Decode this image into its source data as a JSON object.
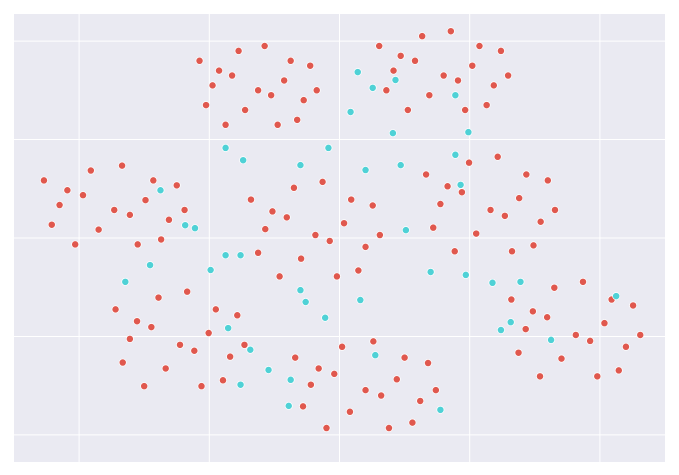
{
  "chart_data": {
    "type": "scatter",
    "grid": true,
    "background": "#eaeaf2",
    "xlim": [
      -50,
      50
    ],
    "ylim": [
      -45.5,
      45.5
    ],
    "xticks": [
      -40,
      -20,
      0,
      20,
      40
    ],
    "yticks": [
      -40,
      -20,
      0,
      20,
      40
    ],
    "series": [
      {
        "color": "#e0584e",
        "x": [
          -12.5,
          -18.5,
          -7.5,
          -20.5,
          -5.5,
          -15.5,
          -9.5,
          -21.5,
          -4.5,
          -17.5,
          -8.5,
          -14.5,
          -3.5,
          -19.5,
          -11.5,
          -6.5,
          -16.5,
          -10.5,
          16,
          9.4,
          21.5,
          7.2,
          23.7,
          12.7,
          19.3,
          6.1,
          24.8,
          10.5,
          20.4,
          13.8,
          25.9,
          8.3,
          17.1,
          22.6,
          11.6,
          18.2,
          -34.6,
          -41.8,
          -28.6,
          -44.2,
          -26.2,
          -38.2,
          -31,
          -45.4,
          -25,
          -40.6,
          -29.8,
          -37,
          -23.8,
          -43,
          -33.4,
          -27.4,
          -39.4,
          -32.2,
          -3.7,
          -10.3,
          1.8,
          -12.5,
          4,
          -7,
          -0.4,
          -13.6,
          5.1,
          -9.2,
          0.7,
          -5.9,
          6.2,
          -11.4,
          -2.6,
          2.9,
          -8.1,
          -1.5,
          23.2,
          16.6,
          28.7,
          14.4,
          30.9,
          19.9,
          26.5,
          13.3,
          32,
          17.7,
          27.6,
          21,
          33.1,
          15.5,
          24.3,
          29.8,
          18.8,
          25.4,
          -24.5,
          -31.1,
          -19,
          -33.3,
          -16.8,
          -27.8,
          -21.2,
          -34.4,
          -15.7,
          -30,
          -20.1,
          -26.7,
          -14.6,
          -32.2,
          -23.4,
          -17.9,
          -28.9,
          -22.3,
          4,
          -3.2,
          10,
          -5.6,
          12.4,
          0.4,
          7.6,
          -6.8,
          13.6,
          -2,
          8.8,
          1.6,
          14.8,
          -4.4,
          5.2,
          11.2,
          -0.8,
          6.4,
          36.3,
          29.7,
          41.8,
          27.5,
          44,
          33,
          39.6,
          26.4,
          45.1,
          30.8,
          40.7,
          34.1,
          46.2,
          28.6,
          37.4,
          42.9,
          31.9,
          38.5
        ],
        "y": [
          30,
          34,
          36,
          27,
          28,
          38,
          23,
          36,
          35,
          23,
          32,
          26,
          30,
          31,
          39,
          24,
          33,
          29,
          33,
          37,
          39,
          30,
          31,
          41,
          26,
          39,
          38,
          26,
          35,
          29,
          33,
          34,
          42,
          27,
          36,
          32,
          5.7,
          9.7,
          11.7,
          2.7,
          3.7,
          13.7,
          -1.3,
          11.7,
          10.7,
          -1.3,
          7.7,
          1.7,
          5.7,
          6.7,
          14.7,
          -0.3,
          8.7,
          4.7,
          0.6,
          5.4,
          7.8,
          -3,
          -1.8,
          10.2,
          -7.8,
          7.8,
          6.6,
          -7.8,
          3,
          -4.2,
          0.6,
          1.8,
          11.4,
          -6.6,
          4.2,
          -0.6,
          5.7,
          10.5,
          12.9,
          2.1,
          3.3,
          15.3,
          -2.7,
          12.9,
          11.7,
          -2.7,
          8.1,
          0.9,
          5.7,
          6.9,
          16.5,
          -1.5,
          9.3,
          4.5,
          -21.7,
          -16.9,
          -14.5,
          -25.3,
          -24.1,
          -12.1,
          -30.1,
          -14.5,
          -15.7,
          -30.1,
          -19.3,
          -26.5,
          -21.7,
          -20.5,
          -10.9,
          -28.9,
          -18.1,
          -22.9,
          -30.9,
          -26.5,
          -24.3,
          -34.2,
          -33.1,
          -22.1,
          -38.6,
          -24.3,
          -25.4,
          -38.6,
          -28.7,
          -35.3,
          -30.9,
          -29.8,
          -21,
          -37.5,
          -27.6,
          -32,
          -19.7,
          -14.9,
          -12.5,
          -23.3,
          -22.1,
          -10.1,
          -28.1,
          -12.5,
          -13.7,
          -28.1,
          -17.3,
          -24.5,
          -19.7,
          -18.5,
          -8.9,
          -26.9,
          -16.1,
          -20.9
        ]
      },
      {
        "color": "#4fd1d6",
        "x": [
          2.8,
          5.1,
          8.6,
          17.8,
          19.8,
          8.2,
          1.7,
          -17.5,
          -14.8,
          -6,
          -1.7,
          4,
          9.4,
          17.8,
          18.6,
          -27.5,
          -23.7,
          -22.2,
          -29.1,
          -32.9,
          -19.8,
          -15.2,
          -6,
          -5.2,
          3.2,
          -2.2,
          14,
          19.4,
          23.5,
          27.8,
          26.3,
          24.8,
          42.5,
          32.5,
          -17.1,
          -13.7,
          -15.2,
          -10.9,
          -7.5,
          -7.8,
          5.5,
          15.5,
          10.2,
          -17.5
        ],
        "y": [
          33.7,
          30.5,
          32.1,
          29,
          21.5,
          21.3,
          25.6,
          18.3,
          15.8,
          14.8,
          18.3,
          13.8,
          14.8,
          16.9,
          10.8,
          9.7,
          2.6,
          2,
          -5.5,
          -8.9,
          -6.5,
          -3.5,
          -10.6,
          -13,
          -12.6,
          -16.2,
          -6.9,
          -7.5,
          -9.1,
          -8.9,
          -17.1,
          -18.7,
          -11.8,
          -20.7,
          -18.3,
          -22.7,
          -29.8,
          -26.8,
          -28.8,
          -34.1,
          -23.8,
          -34.9,
          1.6,
          -3.5
        ]
      }
    ]
  }
}
